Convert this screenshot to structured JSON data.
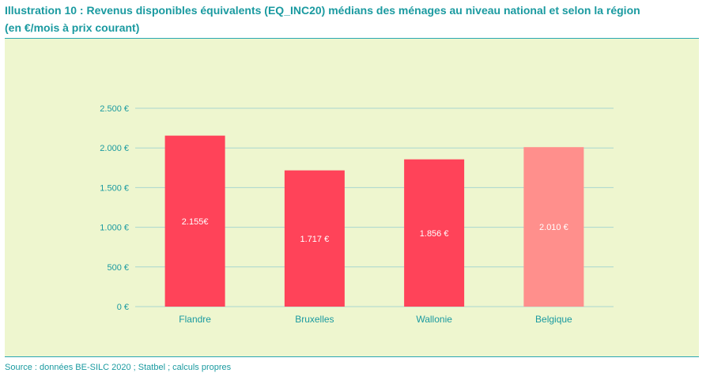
{
  "header": {
    "title_line1": "Illustration 10 : Revenus disponibles équivalents (EQ_INC20) médians des ménages au niveau national et selon la région",
    "title_line2": "(en €/mois à prix courant)"
  },
  "footer": {
    "source": "Source : données BE-SILC 2020 ; Statbel ; calculs propres"
  },
  "colors": {
    "title": "#1a9aa0",
    "panel_bg": "#eef6cf",
    "grid": "#a9d6cf",
    "bar_region": "#ff4359",
    "bar_national": "#ff8f8c"
  },
  "chart_data": {
    "type": "bar",
    "categories": [
      "Flandre",
      "Bruxelles",
      "Wallonie",
      "Belgique"
    ],
    "values": [
      2155,
      1717,
      1856,
      2010
    ],
    "value_labels": [
      "2.155€",
      "1.717 €",
      "1.856 €",
      "2.010 €"
    ],
    "y_ticks": [
      0,
      500,
      1000,
      1500,
      2000,
      2500
    ],
    "y_tick_labels": [
      "0 €",
      "500 €",
      "1.000 €",
      "1.500 €",
      "2.000 €",
      "2.500 €"
    ],
    "ylim": [
      0,
      2500
    ],
    "grid": true,
    "xlabel": "",
    "ylabel": ""
  }
}
